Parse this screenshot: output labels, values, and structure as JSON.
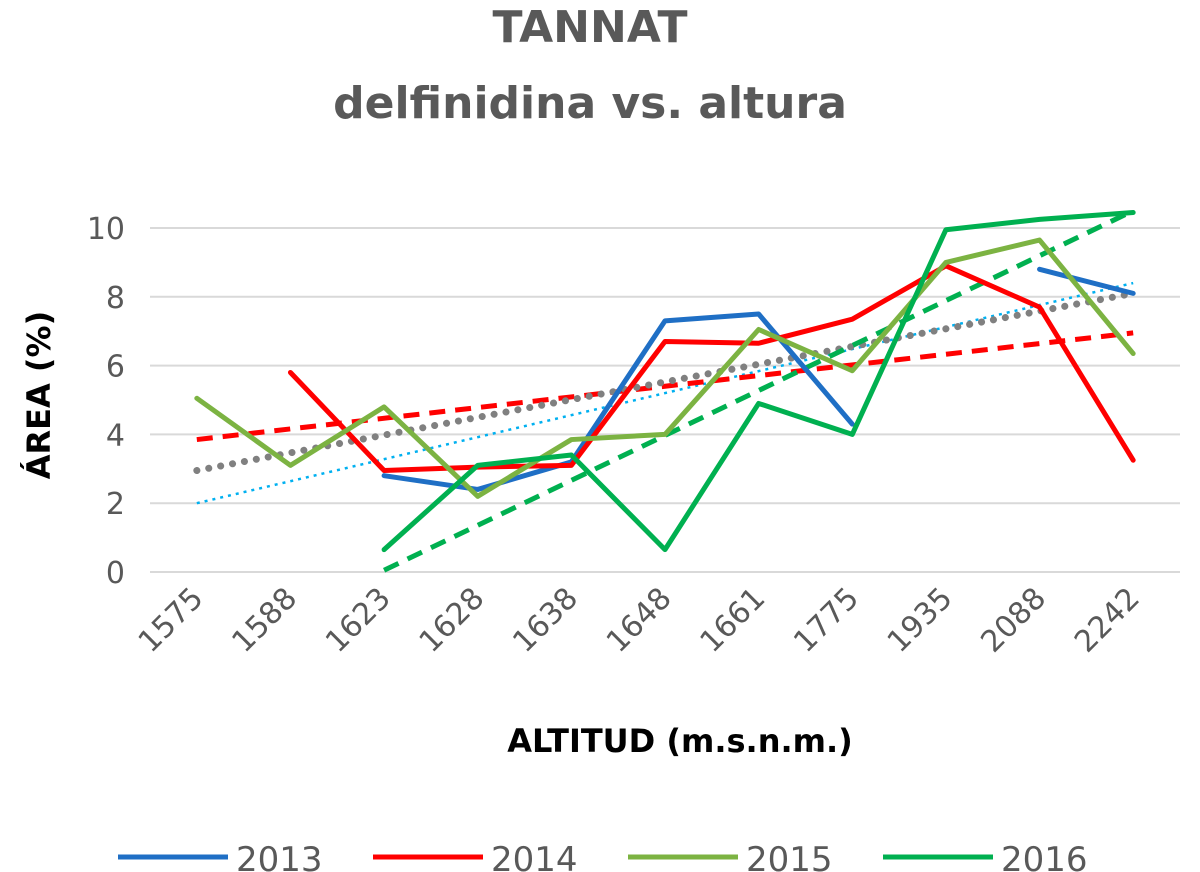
{
  "chart_data": {
    "type": "line",
    "title": "TANNAT",
    "subtitle": "delfinidina vs. altura",
    "xlabel": "ALTITUD (m.s.n.m.)",
    "ylabel": "ÁREA (%)",
    "categories": [
      "1575",
      "1588",
      "1623",
      "1628",
      "1638",
      "1648",
      "1661",
      "1775",
      "1935",
      "2088",
      "2242"
    ],
    "ylim": [
      0,
      10
    ],
    "yticks": [
      0,
      2,
      4,
      6,
      8,
      10
    ],
    "grid": true,
    "legend_position": "bottom",
    "series": [
      {
        "name": "2013",
        "color": "#1f6fc5",
        "values": [
          null,
          null,
          2.8,
          2.4,
          3.2,
          7.3,
          7.5,
          4.3,
          null,
          8.8,
          8.1
        ]
      },
      {
        "name": "2014",
        "color": "#ff0000",
        "values": [
          null,
          5.8,
          2.95,
          3.05,
          3.1,
          6.7,
          6.65,
          7.35,
          8.9,
          7.7,
          3.25
        ]
      },
      {
        "name": "2015",
        "color": "#7cb342",
        "values": [
          5.05,
          3.1,
          4.8,
          2.2,
          3.85,
          4.0,
          7.05,
          5.85,
          9.0,
          9.65,
          6.35
        ]
      },
      {
        "name": "2016",
        "color": "#00b050",
        "values": [
          null,
          null,
          0.65,
          3.1,
          3.4,
          0.65,
          4.9,
          4.0,
          9.95,
          10.25,
          10.45
        ]
      }
    ],
    "trendlines": [
      {
        "color": "#00b0f0",
        "style": "dotted",
        "start": 2.0,
        "end": 8.4
      },
      {
        "color": "#ff0000",
        "style": "dashed",
        "start": 3.85,
        "end": 6.95
      },
      {
        "color": "#808080",
        "style": "round-dotted",
        "start": 2.95,
        "end": 8.1
      },
      {
        "color": "#00b050",
        "style": "dashed",
        "start": 0.05,
        "end": 10.5
      }
    ]
  }
}
